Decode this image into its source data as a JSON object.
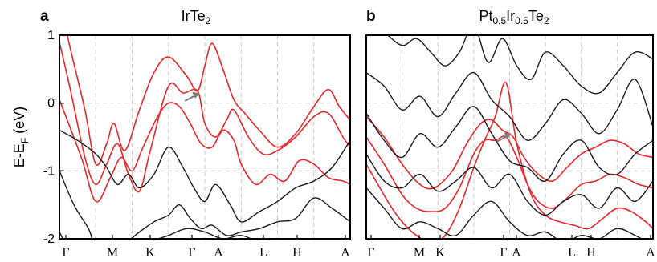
{
  "figure": {
    "ylabel_main": "E-E",
    "ylabel_sub": "F",
    "ylabel_unit": " (eV)"
  },
  "chart_data": [
    {
      "type": "line",
      "panel_letter": "a",
      "title": "IrTe₂",
      "title_parts": {
        "base": "IrTe",
        "sub": "2"
      },
      "ylim": [
        -2,
        1
      ],
      "yticks": [
        -2,
        -1,
        0,
        1
      ],
      "ytick_labels": [
        "-2",
        "-1",
        "0",
        "1"
      ],
      "xlim": [
        0,
        8
      ],
      "xticks": [
        0,
        1,
        2,
        3,
        4,
        5,
        6,
        7
      ],
      "xtick_labels": [
        "Γ",
        "M",
        "K",
        "Γ",
        "A",
        "L",
        "H",
        "A"
      ],
      "grid": true,
      "colors": {
        "highlight": "#e8262a",
        "bands": "#1a1a1a",
        "grid": "#c9c9c9",
        "arrow": "#7a7a7a"
      },
      "annotation": {
        "type": "arrow",
        "target": [
          3.85,
          0.15
        ]
      },
      "series": [
        {
          "color": "#e8262a",
          "x": [
            0,
            0.3,
            0.7,
            1,
            1.3,
            1.5,
            1.8,
            2.2,
            2.6,
            3,
            3.5,
            3.8,
            4,
            4.2,
            4.5,
            4.8,
            5.1,
            5.5,
            6,
            6.5,
            7,
            7.4,
            7.7,
            8
          ],
          "y": [
            1.5,
            0.8,
            -0.1,
            -0.9,
            -0.6,
            -0.3,
            -0.7,
            -0.1,
            0.45,
            0.68,
            0.4,
            0.18,
            0.55,
            0.88,
            0.5,
            0.05,
            -0.15,
            -0.4,
            -0.65,
            -0.45,
            -0.05,
            0.2,
            -0.05,
            -0.25
          ]
        },
        {
          "color": "#e8262a",
          "x": [
            0,
            0.3,
            0.7,
            1,
            1.3,
            1.6,
            1.9,
            2.2,
            2.5,
            3,
            3.4,
            3.8,
            4,
            4.3,
            4.6,
            4.8,
            5.2,
            5.6,
            6,
            6.5,
            7,
            7.4,
            7.8,
            8
          ],
          "y": [
            0.9,
            0.2,
            -0.8,
            -1.2,
            -0.9,
            -0.6,
            -1.05,
            -1.3,
            -0.7,
            0.25,
            0.15,
            0.18,
            -0.3,
            -0.5,
            -0.25,
            -0.1,
            -0.5,
            -0.75,
            -0.7,
            -0.5,
            -0.2,
            -0.15,
            -0.5,
            -0.65
          ]
        },
        {
          "color": "#e8262a",
          "x": [
            0,
            0.6,
            1,
            1.4,
            1.7,
            2,
            2.3,
            2.7,
            3,
            3.3,
            3.6,
            3.9,
            4.2,
            4.5,
            4.8,
            5,
            5.4,
            5.8,
            6.2,
            6.6,
            7,
            7.4,
            7.8,
            8
          ],
          "y": [
            0.05,
            -0.8,
            -1.45,
            -1.1,
            -0.8,
            -1.0,
            -0.65,
            -0.2,
            0.0,
            -0.05,
            -0.3,
            -0.6,
            -0.65,
            -0.4,
            -0.55,
            -0.9,
            -1.2,
            -1.05,
            -1.15,
            -0.85,
            -0.9,
            -1.1,
            -1.15,
            -1.2
          ]
        },
        {
          "color": "#1a1a1a",
          "x": [
            0,
            0.5,
            1,
            1.3,
            1.6,
            1.9,
            2.2,
            2.6,
            3,
            3.4,
            3.7,
            4,
            4.3,
            4.7,
            5,
            5.5,
            6,
            6.5,
            7,
            7.5,
            8
          ],
          "y": [
            -0.4,
            -0.55,
            -0.75,
            -0.95,
            -1.2,
            -1.05,
            -1.25,
            -1.05,
            -0.65,
            -0.95,
            -1.25,
            -1.45,
            -1.2,
            -1.5,
            -1.75,
            -1.6,
            -1.45,
            -1.25,
            -1.15,
            -0.95,
            -0.55
          ]
        },
        {
          "color": "#1a1a1a",
          "x": [
            0,
            0.4,
            0.8,
            1,
            1.4,
            1.8,
            2.2,
            2.6,
            3,
            3.3,
            3.6,
            3.9,
            4.2,
            4.6,
            5,
            5.5,
            6,
            6.5,
            7,
            7.5,
            8
          ],
          "y": [
            -1.0,
            -1.5,
            -1.85,
            -2.1,
            -2.0,
            -2.05,
            -1.9,
            -1.75,
            -1.65,
            -1.5,
            -1.7,
            -1.85,
            -1.8,
            -1.95,
            -1.9,
            -1.85,
            -1.75,
            -1.7,
            -1.4,
            -1.55,
            -1.75
          ]
        },
        {
          "color": "#1a1a1a",
          "x": [
            0,
            0.3,
            0.6,
            1,
            1.5,
            2,
            2.5,
            3,
            3.5,
            4,
            4.5,
            5,
            5.5,
            6,
            6.5,
            7,
            7.5,
            8
          ],
          "y": [
            -1.9,
            -2.2,
            -2.4,
            -2.3,
            -2.2,
            -2.25,
            -2.05,
            -1.95,
            -1.85,
            -1.9,
            -2.0,
            -1.95,
            -2.05,
            -2.1,
            -2.2,
            -2.0,
            -2.2,
            -2.3
          ]
        }
      ]
    },
    {
      "type": "line",
      "panel_letter": "b",
      "title": "Pt₀.₅Ir₀.₅Te₂",
      "title_parts": {
        "a": "Pt",
        "a_sub": "0.5",
        "b": "Ir",
        "b_sub": "0.5",
        "c": "Te",
        "c_sub": "2"
      },
      "ylim": [
        -2,
        1
      ],
      "yticks": [
        -2,
        -1,
        0,
        1
      ],
      "xlim": [
        0,
        8
      ],
      "xticks": [
        0,
        1,
        2,
        3,
        4,
        5,
        6,
        7
      ],
      "xtick_labels": [
        "Γ",
        "M",
        "K",
        "Γ",
        "A",
        "L",
        "H",
        "A"
      ],
      "grid": true,
      "colors": {
        "highlight": "#e8262a",
        "bands": "#1a1a1a",
        "grid": "#c9c9c9",
        "arrow": "#7a7a7a"
      },
      "annotation": {
        "type": "arrow",
        "target": [
          4.05,
          -0.45
        ]
      },
      "series": [
        {
          "color": "#e8262a",
          "x": [
            0,
            0.5,
            1,
            1.5,
            1.9,
            2.4,
            2.8,
            3.2,
            3.5,
            3.8,
            4.1,
            4.4,
            4.8,
            5.2,
            5.6,
            6,
            6.4,
            6.8,
            7.2,
            7.6,
            8
          ],
          "y": [
            -0.2,
            -0.5,
            -0.9,
            -1.2,
            -1.25,
            -1.0,
            -0.6,
            -0.3,
            -0.25,
            -0.4,
            -0.5,
            -0.8,
            -1.05,
            -1.15,
            -0.95,
            -0.75,
            -0.65,
            -0.55,
            -0.6,
            -0.75,
            -0.8
          ]
        },
        {
          "color": "#e8262a",
          "x": [
            0,
            0.5,
            1,
            1.4,
            1.8,
            2.2,
            2.6,
            3,
            3.3,
            3.6,
            3.9,
            4.2,
            4.5,
            4.8,
            5.2,
            5.6,
            6,
            6.4,
            6.8,
            7.2,
            7.6,
            8
          ],
          "y": [
            -0.5,
            -0.9,
            -1.35,
            -1.55,
            -1.6,
            -1.55,
            -1.25,
            -0.75,
            -0.55,
            -0.55,
            -0.5,
            -0.8,
            -1.2,
            -1.45,
            -1.55,
            -1.4,
            -1.2,
            -1.15,
            -1.05,
            -1.1,
            -1.2,
            -1.25
          ]
        },
        {
          "color": "#e8262a",
          "x": [
            0,
            0.6,
            1,
            1.4,
            1.8,
            2.2,
            2.6,
            3,
            3.3,
            3.6,
            3.9,
            4.2,
            4.6,
            5,
            5.4,
            5.8,
            6.2,
            6.6,
            7,
            7.4,
            7.8,
            8
          ],
          "y": [
            -0.9,
            -1.45,
            -1.75,
            -1.95,
            -2.05,
            -1.95,
            -1.55,
            -0.95,
            -0.55,
            -0.2,
            0.3,
            -0.6,
            -1.35,
            -1.65,
            -1.75,
            -1.8,
            -1.85,
            -1.7,
            -1.55,
            -1.6,
            -1.75,
            -1.85
          ]
        },
        {
          "color": "#1a1a1a",
          "x": [
            0,
            0.5,
            1,
            1.4,
            1.8,
            2.2,
            2.6,
            3,
            3.4,
            3.8,
            4.2,
            4.6,
            5,
            5.5,
            6,
            6.5,
            7,
            7.5,
            8
          ],
          "y": [
            1.3,
            1.05,
            0.85,
            0.95,
            0.75,
            0.55,
            0.75,
            1.15,
            0.6,
            0.95,
            0.55,
            0.35,
            0.75,
            0.55,
            0.25,
            0.15,
            0.45,
            0.75,
            0.65
          ]
        },
        {
          "color": "#1a1a1a",
          "x": [
            0,
            0.5,
            1,
            1.5,
            2,
            2.5,
            3,
            3.5,
            4,
            4.5,
            5,
            5.5,
            6,
            6.5,
            7,
            7.5,
            8
          ],
          "y": [
            0.45,
            0.25,
            -0.1,
            0.1,
            -0.2,
            0.15,
            0.45,
            0.05,
            -0.2,
            -0.55,
            -0.3,
            0.05,
            -0.15,
            -0.45,
            -0.1,
            0.35,
            -0.35
          ]
        },
        {
          "color": "#1a1a1a",
          "x": [
            0,
            0.5,
            1,
            1.5,
            2,
            2.5,
            3,
            3.5,
            4,
            4.5,
            5,
            5.5,
            6,
            6.5,
            7,
            7.5,
            8
          ],
          "y": [
            -0.15,
            -0.55,
            -0.8,
            -0.45,
            -0.65,
            -0.35,
            -0.05,
            -0.45,
            -0.85,
            -0.95,
            -1.15,
            -0.75,
            -0.55,
            -0.95,
            -1.05,
            -0.75,
            -0.55
          ]
        },
        {
          "color": "#1a1a1a",
          "x": [
            0,
            0.5,
            1,
            1.5,
            2,
            2.5,
            3,
            3.5,
            4,
            4.5,
            5,
            5.5,
            6,
            6.5,
            7,
            7.5,
            8
          ],
          "y": [
            -0.75,
            -1.15,
            -1.25,
            -1.05,
            -1.3,
            -1.15,
            -0.95,
            -1.25,
            -1.05,
            -1.45,
            -1.65,
            -1.45,
            -1.35,
            -1.55,
            -1.25,
            -1.45,
            -1.15
          ]
        },
        {
          "color": "#1a1a1a",
          "x": [
            0,
            0.5,
            1,
            1.5,
            2,
            2.5,
            3,
            3.5,
            4,
            4.5,
            5,
            5.5,
            6,
            6.5,
            7,
            7.5,
            8
          ],
          "y": [
            -1.25,
            -1.55,
            -1.85,
            -1.75,
            -1.85,
            -1.95,
            -1.65,
            -1.45,
            -1.75,
            -1.95,
            -1.9,
            -2.05,
            -1.95,
            -2.0,
            -1.85,
            -1.95,
            -2.1
          ]
        }
      ]
    }
  ]
}
